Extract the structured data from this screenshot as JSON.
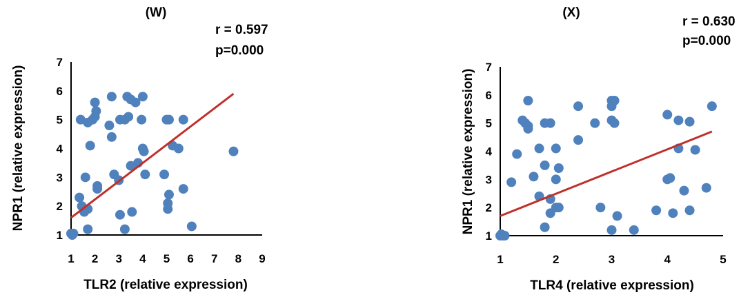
{
  "chart_data": [
    {
      "type": "scatter",
      "title": "(W)",
      "stat_r": "r = 0.597",
      "stat_p": "p=0.000",
      "xlabel": "TLR2 (relative expression)",
      "ylabel": "NPR1 (relative expression)",
      "xlim": [
        1,
        9
      ],
      "ylim": [
        1,
        7
      ],
      "xticks": [
        "1",
        "2",
        "3",
        "4",
        "5",
        "6",
        "7",
        "8",
        "9"
      ],
      "yticks": [
        "1",
        "2",
        "3",
        "4",
        "5",
        "6",
        "7"
      ],
      "series_color": "#4f81bd",
      "trend_color": "#c0302b",
      "trendline": {
        "x": [
          1.0,
          7.8
        ],
        "y": [
          1.6,
          5.9
        ]
      },
      "points": [
        [
          1.0,
          1.05
        ],
        [
          1.05,
          1.0
        ],
        [
          1.1,
          1.05
        ],
        [
          1.35,
          2.3
        ],
        [
          1.45,
          2.0
        ],
        [
          1.55,
          1.8
        ],
        [
          1.6,
          3.0
        ],
        [
          1.7,
          1.2
        ],
        [
          1.7,
          1.9
        ],
        [
          1.8,
          4.1
        ],
        [
          1.4,
          5.0
        ],
        [
          1.7,
          4.9
        ],
        [
          1.9,
          5.0
        ],
        [
          2.0,
          5.6
        ],
        [
          2.05,
          5.3
        ],
        [
          2.0,
          5.1
        ],
        [
          2.1,
          2.7
        ],
        [
          2.1,
          2.6
        ],
        [
          2.6,
          4.8
        ],
        [
          2.7,
          5.8
        ],
        [
          2.7,
          4.4
        ],
        [
          2.8,
          3.1
        ],
        [
          3.0,
          2.9
        ],
        [
          3.05,
          1.7
        ],
        [
          3.05,
          5.0
        ],
        [
          3.25,
          5.0
        ],
        [
          3.25,
          1.2
        ],
        [
          3.35,
          5.8
        ],
        [
          3.4,
          5.1
        ],
        [
          3.5,
          5.7
        ],
        [
          3.5,
          3.4
        ],
        [
          3.55,
          1.8
        ],
        [
          3.7,
          5.6
        ],
        [
          3.8,
          3.5
        ],
        [
          3.95,
          5.0
        ],
        [
          4.0,
          5.8
        ],
        [
          4.0,
          4.0
        ],
        [
          4.05,
          3.9
        ],
        [
          4.1,
          3.1
        ],
        [
          4.9,
          3.1
        ],
        [
          5.0,
          5.0
        ],
        [
          5.05,
          2.1
        ],
        [
          5.05,
          1.9
        ],
        [
          5.1,
          5.0
        ],
        [
          5.1,
          2.4
        ],
        [
          5.25,
          4.1
        ],
        [
          5.5,
          4.0
        ],
        [
          5.7,
          5.0
        ],
        [
          5.7,
          2.6
        ],
        [
          6.05,
          1.3
        ],
        [
          7.8,
          3.9
        ]
      ]
    },
    {
      "type": "scatter",
      "title": "(X)",
      "stat_r": "r = 0.630",
      "stat_p": "p=0.000",
      "xlabel": "TLR4 (relative expression)",
      "ylabel": "NPR1 (relative expression)",
      "xlim": [
        1,
        5
      ],
      "ylim": [
        1,
        7
      ],
      "xticks": [
        "1",
        "2",
        "3",
        "4",
        "5"
      ],
      "yticks": [
        "1",
        "2",
        "3",
        "4",
        "5",
        "6",
        "7"
      ],
      "series_color": "#4f81bd",
      "trend_color": "#c0302b",
      "trendline": {
        "x": [
          1.0,
          4.8
        ],
        "y": [
          1.7,
          4.7
        ]
      },
      "points": [
        [
          1.0,
          1.0
        ],
        [
          1.02,
          1.05
        ],
        [
          1.05,
          1.0
        ],
        [
          1.08,
          1.0
        ],
        [
          1.2,
          2.9
        ],
        [
          1.3,
          3.9
        ],
        [
          1.4,
          5.1
        ],
        [
          1.45,
          5.0
        ],
        [
          1.5,
          5.8
        ],
        [
          1.5,
          4.8
        ],
        [
          1.5,
          4.9
        ],
        [
          1.6,
          3.1
        ],
        [
          1.7,
          4.1
        ],
        [
          1.7,
          2.4
        ],
        [
          1.8,
          3.5
        ],
        [
          1.8,
          1.3
        ],
        [
          1.8,
          5.0
        ],
        [
          1.9,
          5.0
        ],
        [
          1.9,
          2.3
        ],
        [
          1.9,
          1.8
        ],
        [
          2.0,
          4.1
        ],
        [
          2.0,
          3.0
        ],
        [
          2.0,
          2.0
        ],
        [
          2.05,
          2.0
        ],
        [
          2.05,
          3.4
        ],
        [
          2.4,
          5.6
        ],
        [
          2.4,
          4.4
        ],
        [
          2.7,
          5.0
        ],
        [
          2.8,
          2.0
        ],
        [
          3.0,
          5.8
        ],
        [
          3.0,
          5.6
        ],
        [
          3.0,
          5.1
        ],
        [
          3.05,
          5.0
        ],
        [
          3.05,
          5.8
        ],
        [
          3.0,
          1.2
        ],
        [
          3.1,
          1.7
        ],
        [
          3.4,
          1.2
        ],
        [
          3.8,
          1.9
        ],
        [
          4.0,
          5.3
        ],
        [
          4.0,
          3.0
        ],
        [
          4.05,
          3.05
        ],
        [
          4.1,
          1.8
        ],
        [
          4.2,
          5.1
        ],
        [
          4.2,
          4.1
        ],
        [
          4.3,
          2.6
        ],
        [
          4.4,
          5.05
        ],
        [
          4.4,
          1.9
        ],
        [
          4.5,
          4.05
        ],
        [
          4.7,
          2.7
        ],
        [
          4.8,
          5.6
        ]
      ]
    }
  ]
}
